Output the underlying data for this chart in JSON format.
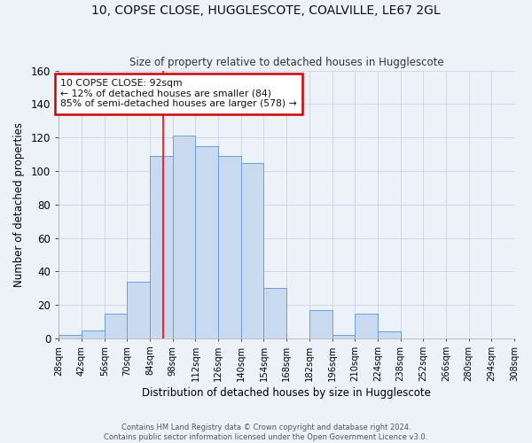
{
  "title": "10, COPSE CLOSE, HUGGLESCOTE, COALVILLE, LE67 2GL",
  "subtitle": "Size of property relative to detached houses in Hugglescote",
  "xlabel": "Distribution of detached houses by size in Hugglescote",
  "ylabel": "Number of detached properties",
  "bin_edges": [
    28,
    42,
    56,
    70,
    84,
    98,
    112,
    126,
    140,
    154,
    168,
    182,
    196,
    210,
    224,
    238,
    252,
    266,
    280,
    294,
    308
  ],
  "bar_heights": [
    2,
    5,
    15,
    34,
    109,
    121,
    115,
    109,
    105,
    30,
    0,
    17,
    2,
    15,
    4,
    0,
    0,
    0,
    0,
    0
  ],
  "bar_color": "#c9d9f0",
  "bar_edge_color": "#6a9fd8",
  "tick_labels": [
    "28sqm",
    "42sqm",
    "56sqm",
    "70sqm",
    "84sqm",
    "98sqm",
    "112sqm",
    "126sqm",
    "140sqm",
    "154sqm",
    "168sqm",
    "182sqm",
    "196sqm",
    "210sqm",
    "224sqm",
    "238sqm",
    "252sqm",
    "266sqm",
    "280sqm",
    "294sqm",
    "308sqm"
  ],
  "ylim": [
    0,
    160
  ],
  "yticks": [
    0,
    20,
    40,
    60,
    80,
    100,
    120,
    140,
    160
  ],
  "property_line_x": 92,
  "annotation_text": "10 COPSE CLOSE: 92sqm\n← 12% of detached houses are smaller (84)\n85% of semi-detached houses are larger (578) →",
  "annotation_box_facecolor": "#ffffff",
  "annotation_box_edgecolor": "#cc0000",
  "grid_color": "#c8d4e8",
  "bg_color": "#edf1f8",
  "footer_line1": "Contains HM Land Registry data © Crown copyright and database right 2024.",
  "footer_line2": "Contains public sector information licensed under the Open Government Licence v3.0."
}
